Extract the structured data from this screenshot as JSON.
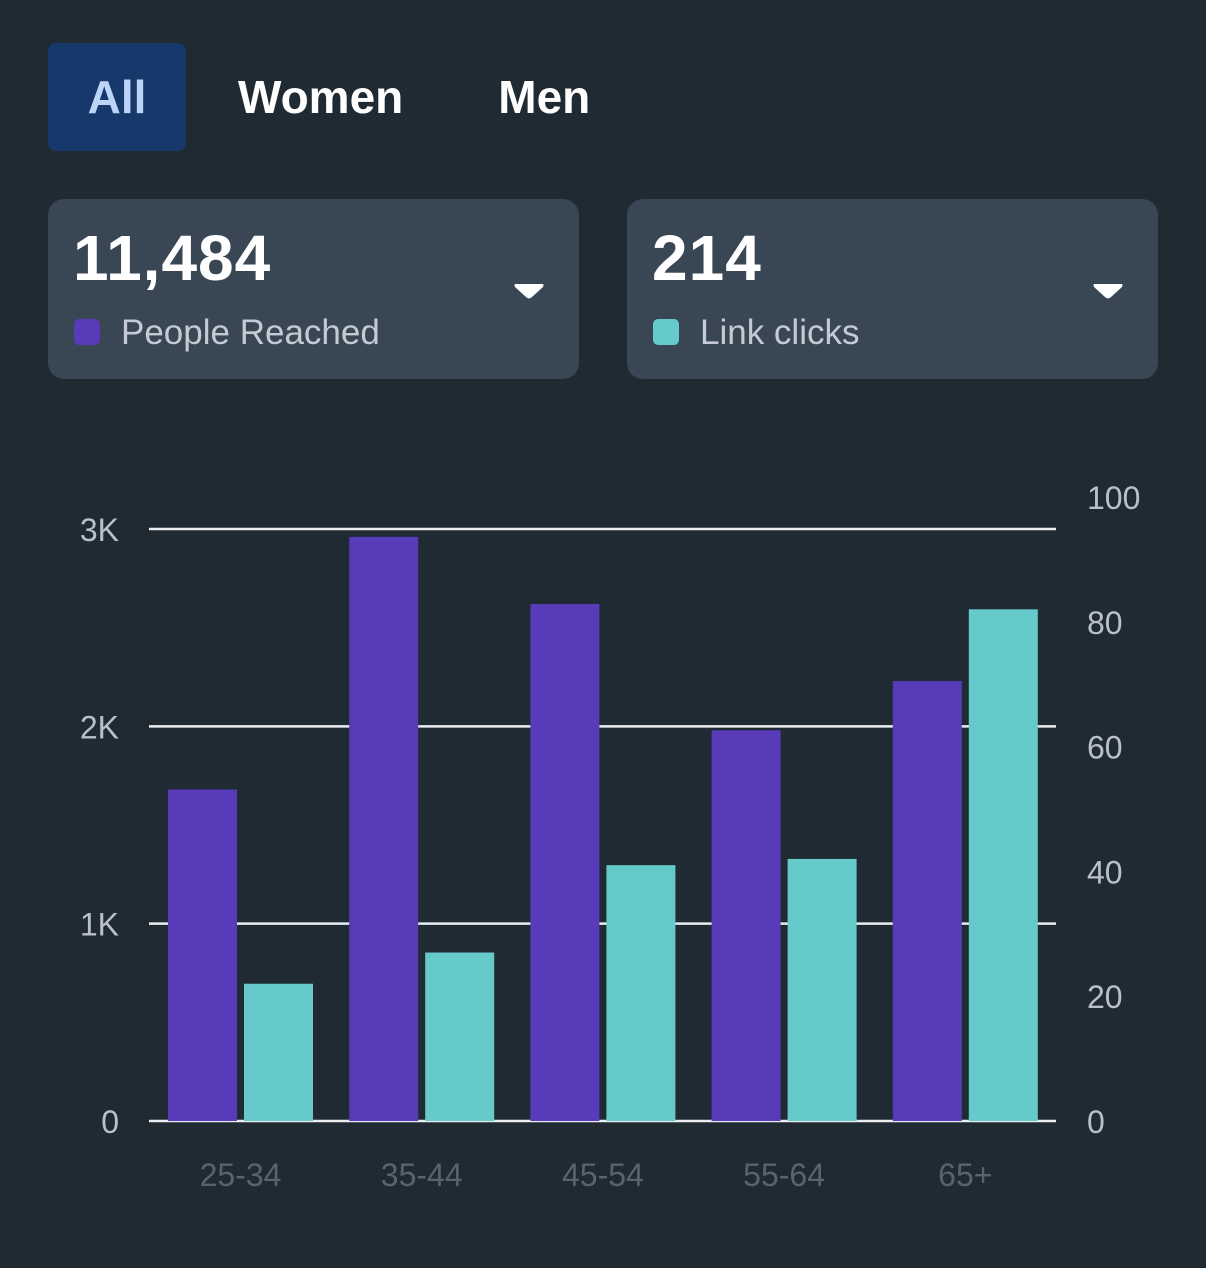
{
  "tabs": [
    {
      "label": "All",
      "active": true
    },
    {
      "label": "Women",
      "active": false
    },
    {
      "label": "Men",
      "active": false
    }
  ],
  "metrics": [
    {
      "value": "11,484",
      "label": "People Reached",
      "color": "#573bb8",
      "icon": "chevron-down-icon"
    },
    {
      "value": "214",
      "label": "Link clicks",
      "color": "#67caca",
      "icon": "chevron-down-icon"
    }
  ],
  "chart_data": {
    "type": "bar",
    "categories": [
      "25-34",
      "35-44",
      "45-54",
      "55-64",
      "65+"
    ],
    "series": [
      {
        "name": "People Reached",
        "axis": "left",
        "color": "#573bb8",
        "values": [
          1680,
          2960,
          2620,
          1980,
          2230
        ]
      },
      {
        "name": "Link clicks",
        "axis": "right",
        "color": "#67caca",
        "values": [
          22,
          27,
          41,
          42,
          82
        ]
      }
    ],
    "y_left": {
      "range": [
        0,
        3000
      ],
      "ticks": [
        0,
        1000,
        2000,
        3000
      ],
      "tick_labels": [
        "0",
        "1K",
        "2K",
        "3K"
      ]
    },
    "y_right": {
      "range": [
        0,
        100
      ],
      "ticks": [
        0,
        20,
        40,
        60,
        80,
        100
      ],
      "tick_labels": [
        "0",
        "20",
        "40",
        "60",
        "80",
        "100"
      ]
    },
    "grid": true
  }
}
